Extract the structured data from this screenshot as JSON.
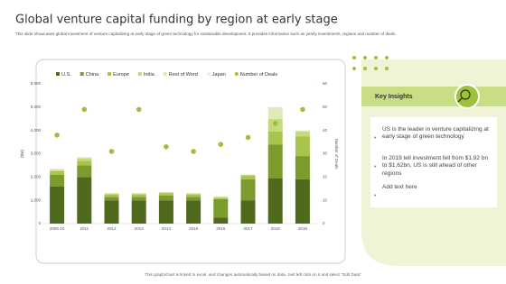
{
  "title": "Global venture capital funding by region at early stage",
  "subtitle": "This slide showcases global investment of venture capitalizing at early stage of green technology for sustainable development. It provides information such as yearly investments, regions and number of deals.",
  "chart_data": {
    "type": "bar",
    "stacked": true,
    "categories": [
      "2005-10",
      "2011",
      "2012",
      "2013",
      "2014",
      "2015",
      "2016",
      "2017",
      "2018",
      "2019"
    ],
    "ylabel": "($M)",
    "y2label": "Number of Deals",
    "ylim": [
      0,
      6000
    ],
    "yticks": [
      0,
      {
        "value": 1000,
        "label": "1,000"
      },
      {
        "value": 2000,
        "label": "2,000"
      },
      {
        "value": 3000,
        "label": "3,000"
      },
      {
        "value": 4000,
        "label": "4,000"
      },
      {
        "value": 5000,
        "label": "5,000"
      },
      {
        "value": 6000,
        "label": "6,000"
      }
    ],
    "y2lim": [
      0,
      60
    ],
    "y2ticks": [
      0,
      10,
      20,
      30,
      40,
      50,
      60
    ],
    "series": [
      {
        "name": "U.S.",
        "color": "#4f6a1c",
        "values": [
          1600,
          2000,
          1000,
          1000,
          1000,
          1000,
          250,
          1000,
          1950,
          1900
        ]
      },
      {
        "name": "China",
        "color": "#7b9b2c",
        "values": [
          500,
          500,
          150,
          150,
          200,
          150,
          800,
          900,
          1450,
          1000
        ]
      },
      {
        "name": "Europe",
        "color": "#a9c34c",
        "values": [
          150,
          200,
          100,
          100,
          100,
          100,
          50,
          150,
          550,
          850
        ]
      },
      {
        "name": "India",
        "color": "#c7d97d",
        "values": [
          50,
          100,
          50,
          50,
          50,
          50,
          50,
          50,
          550,
          200
        ]
      },
      {
        "name": "Rest of Word",
        "color": "#dfe9b9",
        "values": [
          50,
          50,
          0,
          0,
          0,
          0,
          0,
          0,
          500,
          50
        ]
      },
      {
        "name": "Japan",
        "color": "#eef3da",
        "values": [
          0,
          0,
          0,
          0,
          0,
          0,
          0,
          0,
          0,
          0
        ]
      },
      {
        "name": "Number of Deals",
        "color": "#9dc13b",
        "type": "scatter",
        "axis": "y2",
        "values": [
          38,
          49,
          31,
          49,
          33,
          31,
          34,
          37,
          43,
          49
        ]
      }
    ]
  },
  "insights": {
    "title": "Key Insights",
    "bullets": [
      "US is the leader in venture capitalizing at early stage of green technology",
      "In 2019 tell investment fell from $1.92 bn to $1.62bn, US is still ahead of other regions",
      "Add text here"
    ]
  },
  "footer": "This graph/chart is linked to excel, and changes automatically based on data. Just left click on it and select \"Edit Data\""
}
